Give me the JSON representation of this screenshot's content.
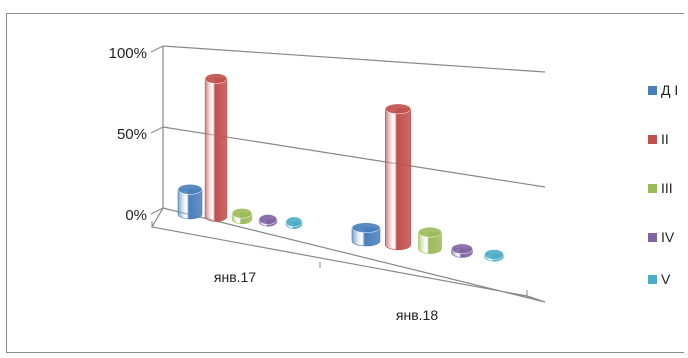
{
  "chart_data": {
    "type": "bar",
    "categories": [
      "янв.17",
      "янв.18"
    ],
    "series": [
      {
        "name": "Д I",
        "values": [
          13,
          7
        ],
        "color": "#4a7ebb"
      },
      {
        "name": "II",
        "values": [
          74,
          73
        ],
        "color": "#c0504d"
      },
      {
        "name": "III",
        "values": [
          3,
          9
        ],
        "color": "#9bbb59"
      },
      {
        "name": "IV",
        "values": [
          1,
          2
        ],
        "color": "#8064a2"
      },
      {
        "name": "V",
        "values": [
          1,
          1
        ],
        "color": "#4bacc6"
      }
    ],
    "ylim": [
      0,
      100
    ],
    "y_ticks": [
      "0%",
      "50%",
      "100%"
    ],
    "grid": true,
    "legend_position": "right",
    "style": "3d-cylinder"
  }
}
